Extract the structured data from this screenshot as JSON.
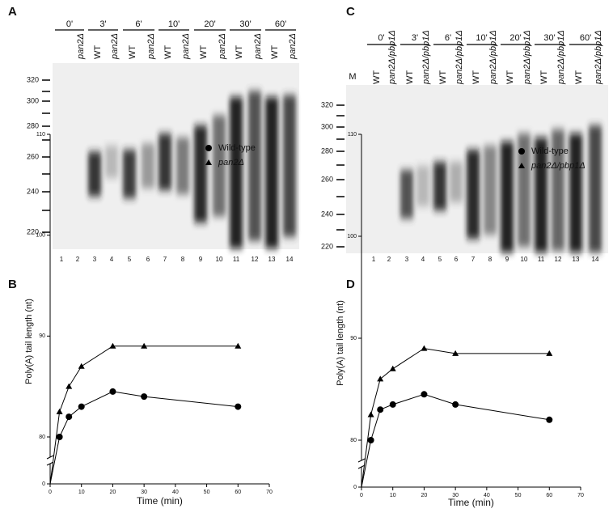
{
  "gels": [
    {
      "panel": "A",
      "times": [
        "0'",
        "3'",
        "6'",
        "10'",
        "20'",
        "30'",
        "60'"
      ],
      "lane_labels": [
        null,
        "pan2Δ",
        "WT",
        "pan2Δ",
        "WT",
        "pan2Δ",
        "WT",
        "pan2Δ",
        "WT",
        "pan2Δ",
        "WT",
        "pan2Δ",
        "WT",
        "pan2Δ"
      ],
      "lane_numbers": [
        "1",
        "2",
        "3",
        "4",
        "5",
        "6",
        "7",
        "8",
        "9",
        "10",
        "11",
        "12",
        "13",
        "14"
      ],
      "markers": [
        "320",
        "300",
        "280",
        "260",
        "240",
        "220"
      ]
    },
    {
      "panel": "C",
      "marker_lane": "M",
      "times": [
        "0'",
        "3'",
        "6'",
        "10'",
        "20'",
        "30'",
        "60'"
      ],
      "lane_labels": [
        "WT",
        "pan2Δ/pbp1Δ",
        "WT",
        "pan2Δ/pbp1Δ",
        "WT",
        "pan2Δ/pbp1Δ",
        "WT",
        "pan2Δ/pbp1Δ",
        "WT",
        "pan2Δ/pbp1Δ",
        "WT",
        "pan2Δ/pbp1Δ",
        "WT",
        "pan2Δ/pbp1Δ"
      ],
      "lane_numbers": [
        "1",
        "2",
        "3",
        "4",
        "5",
        "6",
        "7",
        "8",
        "9",
        "10",
        "11",
        "12",
        "13",
        "14"
      ],
      "markers": [
        "320",
        "300",
        "280",
        "260",
        "240",
        "220"
      ]
    }
  ],
  "chart_data": [
    {
      "type": "line",
      "panel": "B",
      "xlabel": "Time (min)",
      "ylabel": "Poly(A) tail length (nt)",
      "x": [
        0,
        3,
        6,
        10,
        20,
        30,
        60
      ],
      "xlim": [
        0,
        70
      ],
      "xticks": [
        0,
        10,
        20,
        30,
        40,
        50,
        60,
        70
      ],
      "ylim": [
        0,
        110
      ],
      "yticks": [
        0,
        80,
        90,
        100,
        110
      ],
      "y_axis_break": true,
      "legend": "upper right",
      "series": [
        {
          "name": "Wild-type",
          "color": "#000000",
          "marker": "circle",
          "values": [
            0,
            80,
            82,
            83,
            84.5,
            84,
            83
          ]
        },
        {
          "name": "pan2Δ",
          "color": "#000000",
          "marker": "triangle",
          "values": [
            0,
            82.5,
            85,
            87,
            89,
            89,
            89
          ]
        }
      ]
    },
    {
      "type": "line",
      "panel": "D",
      "xlabel": "Time (min)",
      "ylabel": "Poly(A) tail length (nt)",
      "x": [
        0,
        3,
        6,
        10,
        20,
        30,
        60
      ],
      "xlim": [
        0,
        70
      ],
      "xticks": [
        0,
        10,
        20,
        30,
        40,
        50,
        60,
        70
      ],
      "ylim": [
        0,
        110
      ],
      "yticks": [
        0,
        80,
        90,
        100,
        110
      ],
      "y_axis_break": true,
      "legend": "upper right",
      "series": [
        {
          "name": "Wild-type",
          "color": "#000000",
          "marker": "circle",
          "values": [
            0,
            80,
            83,
            83.5,
            84.5,
            83.5,
            82
          ]
        },
        {
          "name": "pan2Δ/pbp1Δ",
          "color": "#000000",
          "marker": "triangle",
          "values": [
            0,
            82.5,
            86,
            87,
            89,
            88.5,
            88.5
          ]
        }
      ]
    }
  ]
}
